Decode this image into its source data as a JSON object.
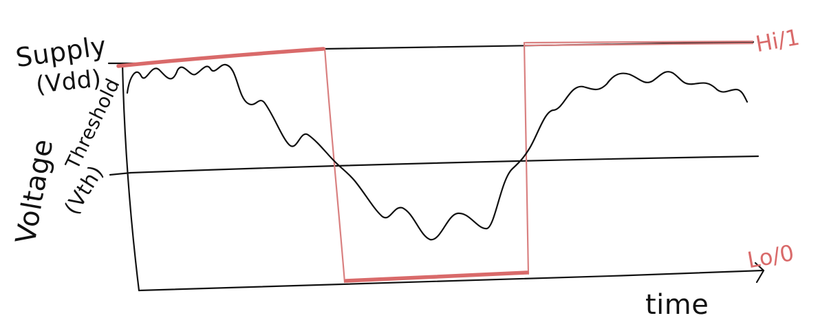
{
  "labels": {
    "supply": "Supply",
    "supply_symbol": "(Vdd)",
    "threshold": "Threshold",
    "threshold_symbol": "(Vth)",
    "y_axis": "Voltage",
    "x_axis": "time",
    "hi_label": "Hi/1",
    "lo_label": "Lo/0"
  },
  "colors": {
    "ink": "#111111",
    "logic_red": "#d96a6a"
  }
}
